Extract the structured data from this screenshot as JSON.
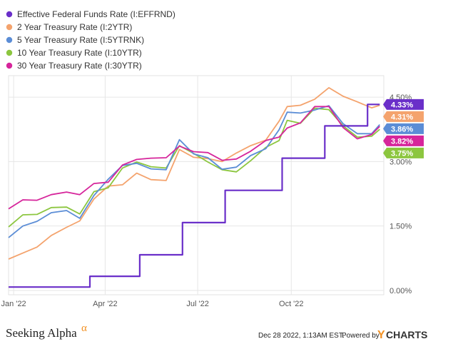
{
  "chart_data": {
    "type": "line",
    "title": "",
    "xlabel": "",
    "ylabel": "",
    "x_ticks": [
      "Jan '22",
      "Apr '22",
      "Jul '22",
      "Oct '22"
    ],
    "y_ticks": [
      "0.00%",
      "1.50%",
      "3.00%",
      "4.50%"
    ],
    "y_tick_values": [
      0,
      1.5,
      3.0,
      4.5
    ],
    "ylim": [
      -0.1,
      5.0
    ],
    "xlim": [
      "2021-12-27",
      "2022-12-31"
    ],
    "grid": true,
    "legend_position": "top-left",
    "series": [
      {
        "name": "Effective Federal Funds Rate (I:EFFRND)",
        "color": "#6a2fc9",
        "end_label": "4.33%",
        "step": true,
        "points": [
          [
            "2021-12-27",
            0.08
          ],
          [
            "2022-03-17",
            0.08
          ],
          [
            "2022-03-17",
            0.33
          ],
          [
            "2022-05-05",
            0.33
          ],
          [
            "2022-05-05",
            0.83
          ],
          [
            "2022-06-16",
            0.83
          ],
          [
            "2022-06-16",
            1.58
          ],
          [
            "2022-07-28",
            1.58
          ],
          [
            "2022-07-28",
            2.33
          ],
          [
            "2022-09-22",
            2.33
          ],
          [
            "2022-09-22",
            3.08
          ],
          [
            "2022-11-03",
            3.08
          ],
          [
            "2022-11-03",
            3.83
          ],
          [
            "2022-12-15",
            3.83
          ],
          [
            "2022-12-15",
            4.33
          ],
          [
            "2022-12-27",
            4.33
          ]
        ]
      },
      {
        "name": "2 Year Treasury Rate (I:2YTR)",
        "color": "#f4a36d",
        "end_label": "4.31%",
        "points": [
          [
            "2021-12-27",
            0.73
          ],
          [
            "2022-01-10",
            0.87
          ],
          [
            "2022-01-24",
            1.01
          ],
          [
            "2022-02-07",
            1.28
          ],
          [
            "2022-02-22",
            1.47
          ],
          [
            "2022-03-07",
            1.62
          ],
          [
            "2022-03-21",
            2.13
          ],
          [
            "2022-04-04",
            2.43
          ],
          [
            "2022-04-18",
            2.46
          ],
          [
            "2022-05-02",
            2.73
          ],
          [
            "2022-05-16",
            2.58
          ],
          [
            "2022-05-31",
            2.56
          ],
          [
            "2022-06-13",
            3.28
          ],
          [
            "2022-06-27",
            3.1
          ],
          [
            "2022-07-11",
            3.07
          ],
          [
            "2022-07-25",
            3.0
          ],
          [
            "2022-08-08",
            3.2
          ],
          [
            "2022-08-22",
            3.37
          ],
          [
            "2022-09-06",
            3.5
          ],
          [
            "2022-09-19",
            3.94
          ],
          [
            "2022-09-27",
            4.28
          ],
          [
            "2022-10-10",
            4.31
          ],
          [
            "2022-10-24",
            4.45
          ],
          [
            "2022-11-07",
            4.72
          ],
          [
            "2022-11-21",
            4.52
          ],
          [
            "2022-12-05",
            4.39
          ],
          [
            "2022-12-19",
            4.25
          ],
          [
            "2022-12-27",
            4.31
          ]
        ]
      },
      {
        "name": "5 Year Treasury Rate (I:5YTRNK)",
        "color": "#5b8dd6",
        "end_label": "3.86%",
        "points": [
          [
            "2021-12-27",
            1.23
          ],
          [
            "2022-01-10",
            1.5
          ],
          [
            "2022-01-24",
            1.61
          ],
          [
            "2022-02-07",
            1.81
          ],
          [
            "2022-02-22",
            1.86
          ],
          [
            "2022-03-07",
            1.68
          ],
          [
            "2022-03-21",
            2.21
          ],
          [
            "2022-04-04",
            2.59
          ],
          [
            "2022-04-18",
            2.91
          ],
          [
            "2022-05-02",
            2.96
          ],
          [
            "2022-05-16",
            2.83
          ],
          [
            "2022-05-31",
            2.81
          ],
          [
            "2022-06-13",
            3.51
          ],
          [
            "2022-06-27",
            3.18
          ],
          [
            "2022-07-11",
            3.09
          ],
          [
            "2022-07-25",
            2.82
          ],
          [
            "2022-08-08",
            2.87
          ],
          [
            "2022-08-22",
            3.14
          ],
          [
            "2022-09-06",
            3.3
          ],
          [
            "2022-09-19",
            3.74
          ],
          [
            "2022-09-27",
            4.15
          ],
          [
            "2022-10-10",
            4.13
          ],
          [
            "2022-10-24",
            4.2
          ],
          [
            "2022-11-07",
            4.3
          ],
          [
            "2022-11-21",
            3.88
          ],
          [
            "2022-12-05",
            3.65
          ],
          [
            "2022-12-19",
            3.65
          ],
          [
            "2022-12-27",
            3.86
          ]
        ]
      },
      {
        "name": "10 Year Treasury Rate (I:10YTR)",
        "color": "#8cc63f",
        "end_label": "3.75%",
        "points": [
          [
            "2021-12-27",
            1.48
          ],
          [
            "2022-01-10",
            1.76
          ],
          [
            "2022-01-24",
            1.77
          ],
          [
            "2022-02-07",
            1.93
          ],
          [
            "2022-02-22",
            1.94
          ],
          [
            "2022-03-07",
            1.78
          ],
          [
            "2022-03-21",
            2.3
          ],
          [
            "2022-04-04",
            2.39
          ],
          [
            "2022-04-18",
            2.85
          ],
          [
            "2022-05-02",
            2.99
          ],
          [
            "2022-05-16",
            2.88
          ],
          [
            "2022-05-31",
            2.85
          ],
          [
            "2022-06-13",
            3.37
          ],
          [
            "2022-06-27",
            3.19
          ],
          [
            "2022-07-11",
            2.99
          ],
          [
            "2022-07-25",
            2.81
          ],
          [
            "2022-08-08",
            2.76
          ],
          [
            "2022-08-22",
            3.02
          ],
          [
            "2022-09-06",
            3.33
          ],
          [
            "2022-09-19",
            3.49
          ],
          [
            "2022-09-27",
            3.96
          ],
          [
            "2022-10-10",
            3.89
          ],
          [
            "2022-10-24",
            4.24
          ],
          [
            "2022-11-07",
            4.21
          ],
          [
            "2022-11-21",
            3.83
          ],
          [
            "2022-12-05",
            3.57
          ],
          [
            "2022-12-19",
            3.59
          ],
          [
            "2022-12-27",
            3.75
          ]
        ]
      },
      {
        "name": "30 Year Treasury Rate (I:30YTR)",
        "color": "#d6259b",
        "end_label": "3.82%",
        "points": [
          [
            "2021-12-27",
            1.9
          ],
          [
            "2022-01-10",
            2.11
          ],
          [
            "2022-01-24",
            2.1
          ],
          [
            "2022-02-07",
            2.23
          ],
          [
            "2022-02-22",
            2.29
          ],
          [
            "2022-03-07",
            2.23
          ],
          [
            "2022-03-21",
            2.49
          ],
          [
            "2022-04-04",
            2.52
          ],
          [
            "2022-04-18",
            2.92
          ],
          [
            "2022-05-02",
            3.05
          ],
          [
            "2022-05-16",
            3.08
          ],
          [
            "2022-05-31",
            3.09
          ],
          [
            "2022-06-13",
            3.36
          ],
          [
            "2022-06-27",
            3.23
          ],
          [
            "2022-07-11",
            3.21
          ],
          [
            "2022-07-25",
            3.03
          ],
          [
            "2022-08-08",
            3.06
          ],
          [
            "2022-08-22",
            3.24
          ],
          [
            "2022-09-06",
            3.49
          ],
          [
            "2022-09-19",
            3.57
          ],
          [
            "2022-09-27",
            3.78
          ],
          [
            "2022-10-10",
            3.9
          ],
          [
            "2022-10-24",
            4.28
          ],
          [
            "2022-11-07",
            4.28
          ],
          [
            "2022-11-21",
            3.79
          ],
          [
            "2022-12-05",
            3.53
          ],
          [
            "2022-12-19",
            3.63
          ],
          [
            "2022-12-27",
            3.82
          ]
        ]
      }
    ],
    "end_label_order": [
      0,
      1,
      2,
      4,
      3
    ]
  },
  "footer": {
    "brand": "Seeking Alpha",
    "brand_alpha": "α",
    "timestamp": "Dec 28 2022, 1:13AM EST.",
    "powered_by": "Powered by",
    "ycharts_y": "Y",
    "ycharts_rest": "CHARTS"
  }
}
